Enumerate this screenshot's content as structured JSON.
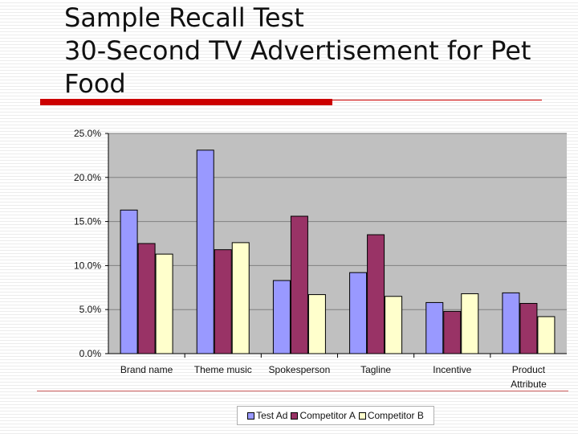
{
  "slide": {
    "title_lines": [
      "Sample Recall Test",
      "30-Second TV Advertisement for Pet",
      "Food"
    ]
  },
  "chart_data": {
    "type": "bar",
    "categories": [
      [
        "Brand name"
      ],
      [
        "Theme music"
      ],
      [
        "Spokesperson"
      ],
      [
        "Tagline"
      ],
      [
        "Incentive"
      ],
      [
        "Product",
        "Attribute"
      ]
    ],
    "series": [
      {
        "name": "Test Ad",
        "color": "#9999ff",
        "values": [
          16.3,
          23.1,
          8.3,
          9.2,
          5.8,
          6.9
        ]
      },
      {
        "name": "Competitor A",
        "color": "#993366",
        "values": [
          12.5,
          11.8,
          15.6,
          13.5,
          4.8,
          5.7
        ]
      },
      {
        "name": "Competitor B",
        "color": "#ffffcc",
        "values": [
          11.3,
          12.6,
          6.7,
          6.5,
          6.8,
          4.2
        ]
      }
    ],
    "ylim": [
      0,
      25
    ],
    "yticks": [
      "0.0%",
      "5.0%",
      "10.0%",
      "15.0%",
      "20.0%",
      "25.0%"
    ],
    "plot_background": "#c0c0c0",
    "grid": true,
    "legend_position": "bottom"
  }
}
